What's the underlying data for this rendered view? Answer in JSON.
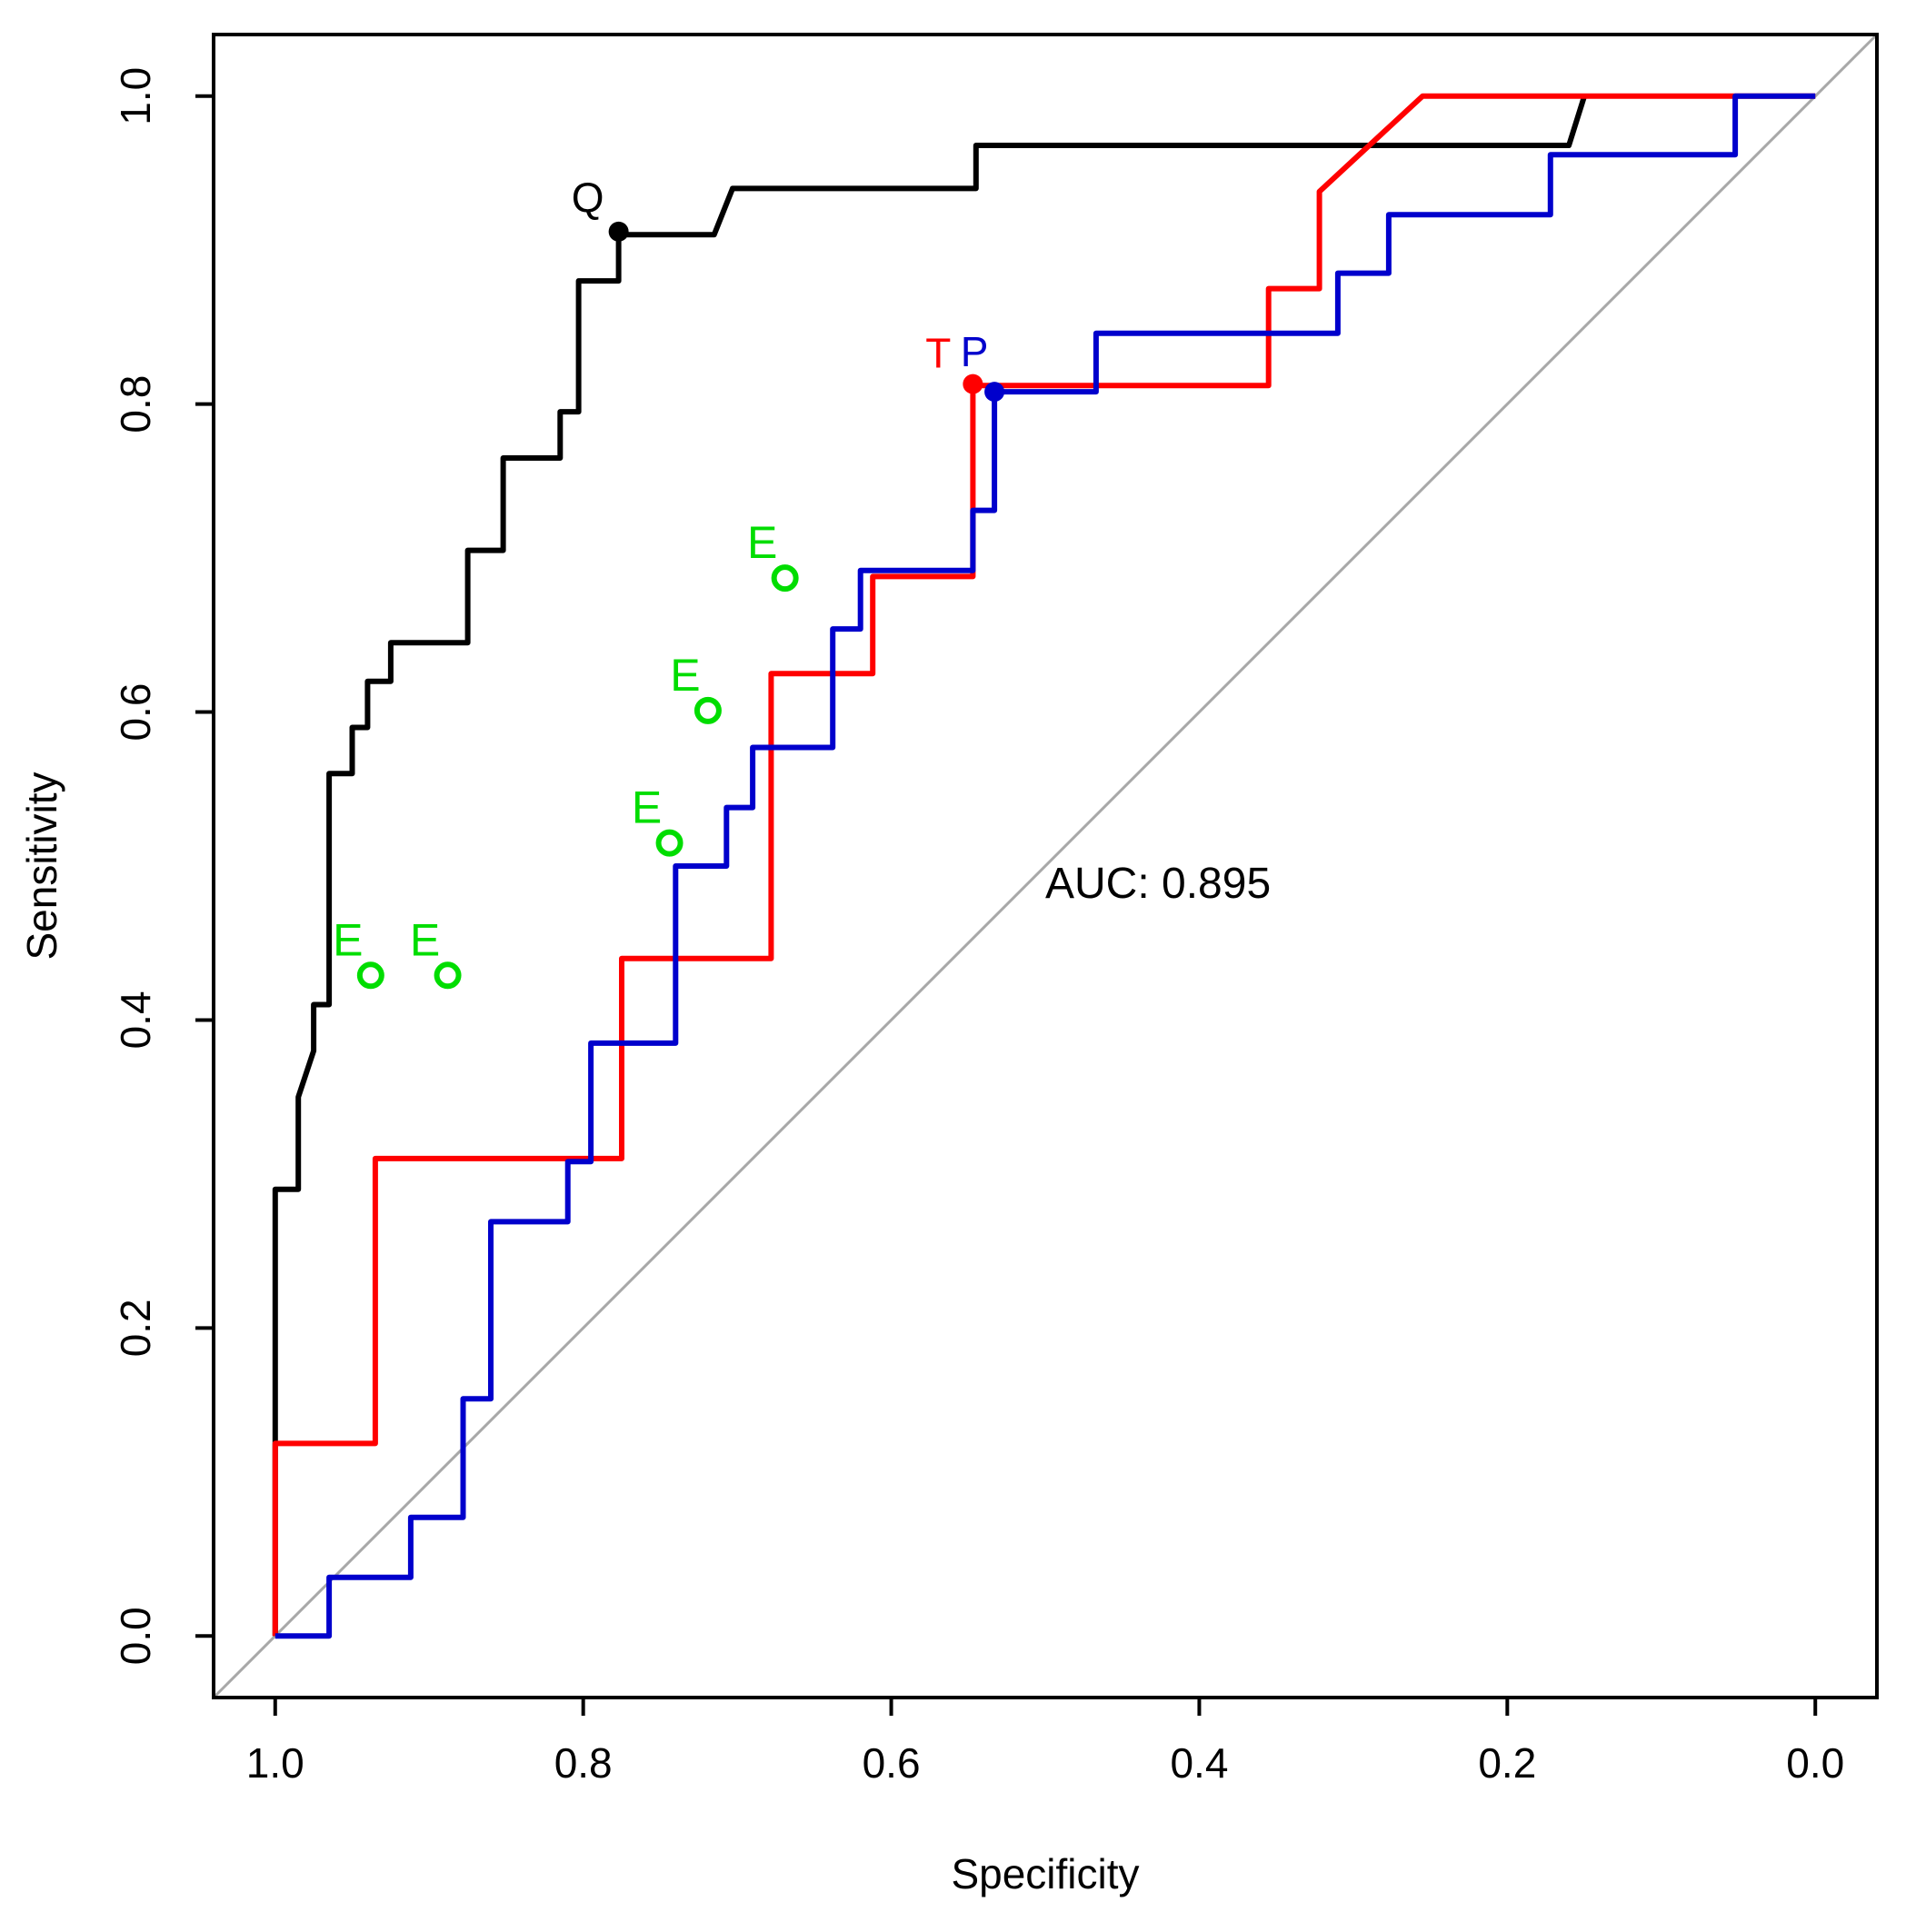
{
  "chart_data": {
    "type": "line",
    "title": "",
    "xlabel": "Specificity",
    "ylabel": "Sensitivity",
    "xlim": [
      1.04,
      -0.04
    ],
    "ylim": [
      -0.04,
      1.04
    ],
    "x_reversed": true,
    "x_ticks": [
      1.0,
      0.8,
      0.6,
      0.4,
      0.2,
      0.0
    ],
    "x_tick_labels": [
      "1.0",
      "0.8",
      "0.6",
      "0.4",
      "0.2",
      "0.0"
    ],
    "y_ticks": [
      0.0,
      0.2,
      0.4,
      0.6,
      0.8,
      1.0
    ],
    "y_tick_labels": [
      "0.0",
      "0.2",
      "0.4",
      "0.6",
      "0.8",
      "1.0"
    ],
    "annotation": "AUC: 0.895",
    "colors": {
      "black": "#000000",
      "red": "#ff0000",
      "blue": "#0000cc",
      "green": "#00dd00",
      "diagonal": "#a8a8a8"
    },
    "series": [
      {
        "name": "black curve",
        "color": "#000000",
        "points": [
          [
            1.0,
            0.0
          ],
          [
            1.0,
            0.125
          ],
          [
            1.0,
            0.29
          ],
          [
            0.985,
            0.29
          ],
          [
            0.985,
            0.35
          ],
          [
            0.975,
            0.38
          ],
          [
            0.975,
            0.41
          ],
          [
            0.965,
            0.41
          ],
          [
            0.965,
            0.56
          ],
          [
            0.95,
            0.56
          ],
          [
            0.95,
            0.59
          ],
          [
            0.94,
            0.59
          ],
          [
            0.94,
            0.62
          ],
          [
            0.925,
            0.62
          ],
          [
            0.925,
            0.645
          ],
          [
            0.875,
            0.645
          ],
          [
            0.875,
            0.705
          ],
          [
            0.852,
            0.705
          ],
          [
            0.852,
            0.765
          ],
          [
            0.815,
            0.765
          ],
          [
            0.815,
            0.795
          ],
          [
            0.803,
            0.795
          ],
          [
            0.803,
            0.88
          ],
          [
            0.777,
            0.88
          ],
          [
            0.777,
            0.91
          ],
          [
            0.715,
            0.91
          ],
          [
            0.703,
            0.94
          ],
          [
            0.545,
            0.94
          ],
          [
            0.545,
            0.968
          ],
          [
            0.16,
            0.968
          ],
          [
            0.15,
            1.0
          ]
        ]
      },
      {
        "name": "red curve",
        "color": "#ff0000",
        "points": [
          [
            1.0,
            0.0
          ],
          [
            1.0,
            0.125
          ],
          [
            0.935,
            0.125
          ],
          [
            0.935,
            0.31
          ],
          [
            0.775,
            0.31
          ],
          [
            0.775,
            0.44
          ],
          [
            0.678,
            0.44
          ],
          [
            0.678,
            0.625
          ],
          [
            0.612,
            0.625
          ],
          [
            0.612,
            0.688
          ],
          [
            0.547,
            0.688
          ],
          [
            0.547,
            0.812
          ],
          [
            0.355,
            0.812
          ],
          [
            0.355,
            0.875
          ],
          [
            0.322,
            0.875
          ],
          [
            0.322,
            0.938
          ],
          [
            0.255,
            1.0
          ],
          [
            0.0,
            1.0
          ]
        ]
      },
      {
        "name": "blue curve",
        "color": "#0000cc",
        "points": [
          [
            1.0,
            0.0
          ],
          [
            0.965,
            0.0
          ],
          [
            0.965,
            0.038
          ],
          [
            0.912,
            0.038
          ],
          [
            0.912,
            0.077
          ],
          [
            0.878,
            0.077
          ],
          [
            0.878,
            0.154
          ],
          [
            0.86,
            0.154
          ],
          [
            0.86,
            0.269
          ],
          [
            0.81,
            0.269
          ],
          [
            0.81,
            0.308
          ],
          [
            0.795,
            0.308
          ],
          [
            0.795,
            0.385
          ],
          [
            0.74,
            0.385
          ],
          [
            0.74,
            0.5
          ],
          [
            0.707,
            0.5
          ],
          [
            0.707,
            0.538
          ],
          [
            0.69,
            0.538
          ],
          [
            0.69,
            0.577
          ],
          [
            0.638,
            0.577
          ],
          [
            0.638,
            0.654
          ],
          [
            0.62,
            0.654
          ],
          [
            0.62,
            0.692
          ],
          [
            0.547,
            0.692
          ],
          [
            0.547,
            0.731
          ],
          [
            0.533,
            0.731
          ],
          [
            0.533,
            0.808
          ],
          [
            0.467,
            0.808
          ],
          [
            0.467,
            0.846
          ],
          [
            0.31,
            0.846
          ],
          [
            0.31,
            0.885
          ],
          [
            0.277,
            0.885
          ],
          [
            0.277,
            0.923
          ],
          [
            0.172,
            0.923
          ],
          [
            0.172,
            0.962
          ],
          [
            0.052,
            0.962
          ],
          [
            0.052,
            1.0
          ],
          [
            0.0,
            1.0
          ]
        ]
      }
    ],
    "points": [
      {
        "label": "Q",
        "x": 0.777,
        "y": 0.912,
        "color": "#000000",
        "marker": "dot"
      },
      {
        "label": "T",
        "x": 0.547,
        "y": 0.813,
        "color": "#ff0000",
        "marker": "dot"
      },
      {
        "label": "P",
        "x": 0.533,
        "y": 0.808,
        "color": "#0000cc",
        "marker": "dot"
      },
      {
        "label": "E",
        "x": 0.938,
        "y": 0.429,
        "color": "#00dd00",
        "marker": "circle"
      },
      {
        "label": "E",
        "x": 0.888,
        "y": 0.429,
        "color": "#00dd00",
        "marker": "circle"
      },
      {
        "label": "E",
        "x": 0.744,
        "y": 0.515,
        "color": "#00dd00",
        "marker": "circle"
      },
      {
        "label": "E",
        "x": 0.719,
        "y": 0.601,
        "color": "#00dd00",
        "marker": "circle"
      },
      {
        "label": "E",
        "x": 0.669,
        "y": 0.687,
        "color": "#00dd00",
        "marker": "circle"
      }
    ]
  }
}
